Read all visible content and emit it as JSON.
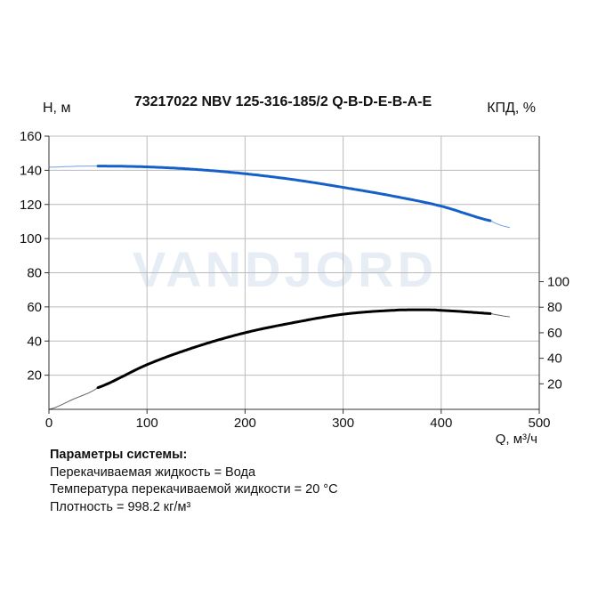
{
  "chart_data": {
    "type": "line",
    "title": "73217022 NBV 125-316-185/2 Q-B-D-E-B-A-E",
    "xlabel": "Q, м³/ч",
    "ylabel": "H, м",
    "y2label": "КПД, %",
    "xlim": [
      0,
      500
    ],
    "ylim": [
      0,
      160
    ],
    "y2lim": [
      0,
      214
    ],
    "xticks": [
      0,
      100,
      200,
      300,
      400,
      500
    ],
    "yticks": [
      20,
      40,
      60,
      80,
      100,
      120,
      140,
      160
    ],
    "y2ticks": [
      20,
      40,
      60,
      80,
      100
    ],
    "grid": true,
    "operating_range": [
      50,
      450
    ],
    "series": [
      {
        "axis": "left",
        "color": "#1560c8",
        "x": [
          0,
          25,
          50,
          100,
          150,
          200,
          250,
          300,
          350,
          400,
          450,
          470
        ],
        "y": [
          141.8,
          142.3,
          142.5,
          142,
          140.5,
          138,
          134.5,
          130,
          125,
          119,
          110.5,
          106.5
        ]
      },
      {
        "axis": "right",
        "color": "#000000",
        "x": [
          0,
          25,
          50,
          100,
          150,
          200,
          250,
          300,
          350,
          380,
          400,
          450,
          470
        ],
        "y": [
          0,
          8,
          17,
          35,
          49,
          60,
          68,
          74.5,
          77.5,
          78,
          77.5,
          75,
          72.5
        ]
      }
    ]
  },
  "watermark": "VANDJORD",
  "info": {
    "heading": "Параметры системы:",
    "lines": [
      "Перекачиваемая жидкость = Вода",
      "Температура перекачиваемой жидкости = 20 °C",
      "Плотность = 998.2 кг/м³"
    ]
  }
}
